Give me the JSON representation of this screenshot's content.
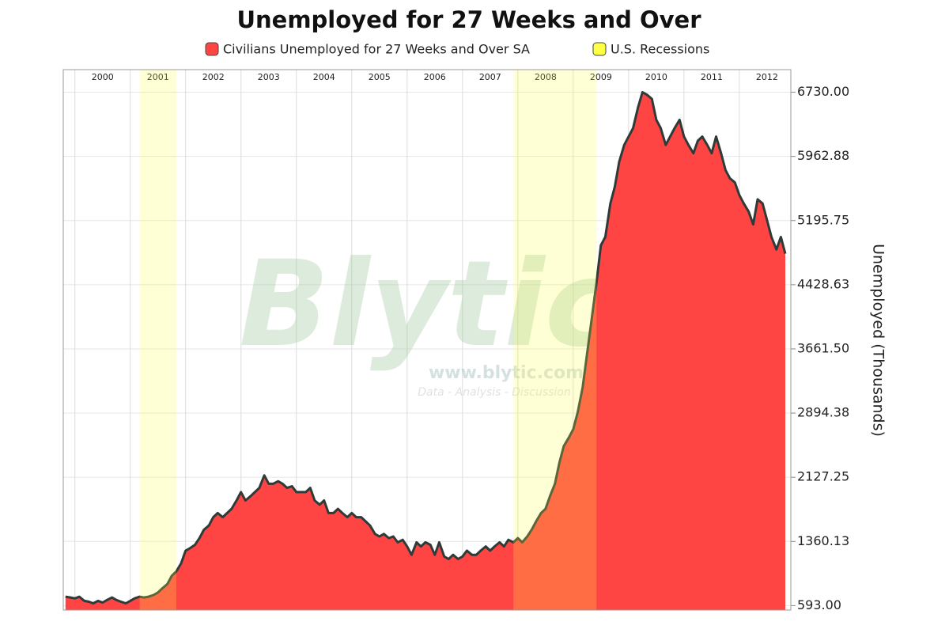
{
  "chart_data": {
    "type": "area",
    "title": "Unemployed for 27 Weeks and Over",
    "y_label": "Unemployed (Thousands)",
    "x": [
      1999.83,
      1999.92,
      2000,
      2000.08,
      2000.17,
      2000.25,
      2000.33,
      2000.42,
      2000.5,
      2000.58,
      2000.67,
      2000.75,
      2000.83,
      2000.92,
      2001,
      2001.08,
      2001.17,
      2001.25,
      2001.33,
      2001.42,
      2001.5,
      2001.58,
      2001.67,
      2001.75,
      2001.83,
      2001.92,
      2002,
      2002.08,
      2002.17,
      2002.25,
      2002.33,
      2002.42,
      2002.5,
      2002.58,
      2002.67,
      2002.75,
      2002.83,
      2002.92,
      2003,
      2003.08,
      2003.17,
      2003.25,
      2003.33,
      2003.42,
      2003.5,
      2003.58,
      2003.67,
      2003.75,
      2003.83,
      2003.92,
      2004,
      2004.08,
      2004.17,
      2004.25,
      2004.33,
      2004.42,
      2004.5,
      2004.58,
      2004.67,
      2004.75,
      2004.83,
      2004.92,
      2005,
      2005.08,
      2005.17,
      2005.25,
      2005.33,
      2005.42,
      2005.5,
      2005.58,
      2005.67,
      2005.75,
      2005.83,
      2005.92,
      2006,
      2006.08,
      2006.17,
      2006.25,
      2006.33,
      2006.42,
      2006.5,
      2006.58,
      2006.67,
      2006.75,
      2006.83,
      2006.92,
      2007,
      2007.08,
      2007.17,
      2007.25,
      2007.33,
      2007.42,
      2007.5,
      2007.58,
      2007.67,
      2007.75,
      2007.83,
      2007.92,
      2008,
      2008.08,
      2008.17,
      2008.25,
      2008.33,
      2008.42,
      2008.5,
      2008.58,
      2008.67,
      2008.75,
      2008.83,
      2008.92,
      2009,
      2009.08,
      2009.17,
      2009.25,
      2009.33,
      2009.42,
      2009.5,
      2009.58,
      2009.67,
      2009.75,
      2009.83,
      2009.92,
      2010,
      2010.08,
      2010.17,
      2010.25,
      2010.33,
      2010.42,
      2010.5,
      2010.58,
      2010.67,
      2010.75,
      2010.83,
      2010.92,
      2011,
      2011.08,
      2011.17,
      2011.25,
      2011.33,
      2011.42,
      2011.5,
      2011.58,
      2011.67,
      2011.75,
      2011.83,
      2011.92,
      2012,
      2012.08,
      2012.17,
      2012.25,
      2012.33,
      2012.42,
      2012.5,
      2012.58,
      2012.67,
      2012.75,
      2012.83
    ],
    "series": [
      {
        "name": "Civilians Unemployed for 27 Weeks and Over SA",
        "color": "#ff4444",
        "line_color": "#2f3b38",
        "values": [
          700,
          690,
          680,
          700,
          650,
          640,
          620,
          650,
          630,
          660,
          690,
          660,
          640,
          620,
          650,
          680,
          700,
          690,
          700,
          720,
          750,
          800,
          850,
          950,
          1000,
          1100,
          1250,
          1280,
          1320,
          1400,
          1500,
          1550,
          1650,
          1700,
          1650,
          1700,
          1750,
          1850,
          1950,
          1850,
          1900,
          1950,
          2000,
          2150,
          2050,
          2050,
          2080,
          2050,
          2000,
          2020,
          1950,
          1950,
          1950,
          2000,
          1850,
          1800,
          1850,
          1700,
          1700,
          1750,
          1700,
          1650,
          1700,
          1650,
          1650,
          1600,
          1550,
          1450,
          1420,
          1450,
          1400,
          1420,
          1350,
          1380,
          1300,
          1200,
          1350,
          1300,
          1350,
          1320,
          1200,
          1350,
          1180,
          1150,
          1200,
          1150,
          1180,
          1250,
          1200,
          1200,
          1250,
          1300,
          1250,
          1300,
          1350,
          1300,
          1380,
          1350,
          1400,
          1350,
          1420,
          1500,
          1600,
          1700,
          1750,
          1900,
          2050,
          2300,
          2500,
          2600,
          2700,
          2900,
          3200,
          3600,
          4000,
          4450,
          4900,
          5000,
          5400,
          5600,
          5900,
          6100,
          6200,
          6300,
          6550,
          6730,
          6700,
          6650,
          6400,
          6300,
          6100,
          6200,
          6300,
          6400,
          6200,
          6100,
          6000,
          6150,
          6200,
          6100,
          6000,
          6200,
          6000,
          5800,
          5700,
          5650,
          5500,
          5400,
          5300,
          5150,
          5450,
          5400,
          5200,
          5000,
          4850,
          5000,
          4800
        ]
      }
    ],
    "recessions": {
      "name": "U.S. Recessions",
      "color": "#ffff44",
      "spans": [
        [
          2001.17,
          2001.83
        ],
        [
          2007.92,
          2009.42
        ]
      ]
    },
    "xlim": [
      1999.79,
      2012.93
    ],
    "xticks": [
      2000,
      2001,
      2002,
      2003,
      2004,
      2005,
      2006,
      2007,
      2008,
      2009,
      2010,
      2011,
      2012
    ],
    "ylim": [
      540,
      7000
    ],
    "yticks": [
      {
        "value": 593,
        "label": "593.00"
      },
      1360.13,
      2127.25,
      2894.38,
      {
        "value": 3661.5,
        "label": "3661.50"
      },
      4428.63,
      5195.75,
      5962.88,
      {
        "value": 6730,
        "label": "6730.00"
      }
    ],
    "grid": true,
    "watermark": {
      "brand": "Blytic",
      "url": "www.blytic.com",
      "tagline": "Data - Analysis - Discussion"
    }
  }
}
